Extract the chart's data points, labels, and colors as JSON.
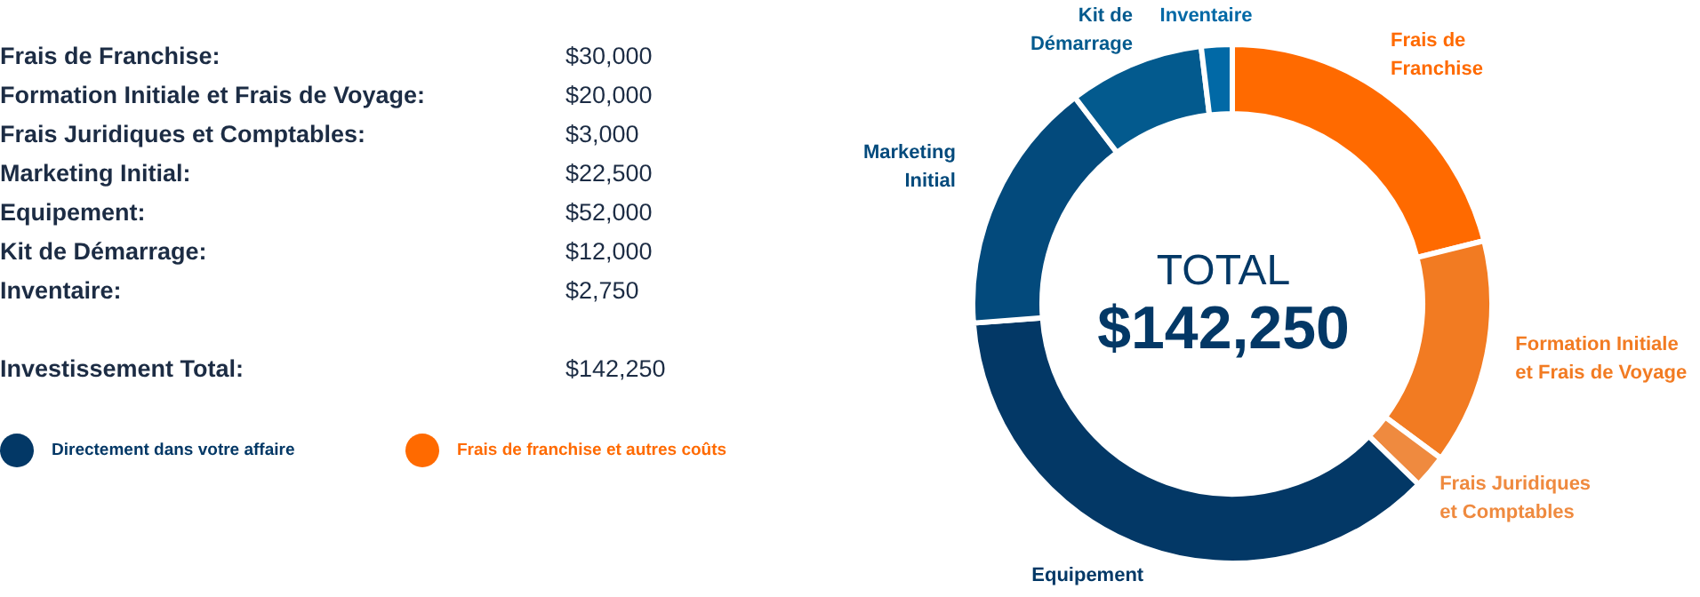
{
  "chart_data": {
    "type": "donut",
    "categories": [
      "Frais de Franchise",
      "Formation Initiale et Frais de Voyage",
      "Frais Juridiques et Comptables",
      "Equipement",
      "Marketing Initial",
      "Kit de Démarrage",
      "Inventaire"
    ],
    "values": [
      21.09,
      14.06,
      2.11,
      36.56,
      15.82,
      8.44,
      1.92
    ],
    "colors": [
      "#ff6a00",
      "#f27b22",
      "#ef8a3f",
      "#033866",
      "#034a7c",
      "#035a8e",
      "#0169a6"
    ],
    "annotations": [
      "Frais de Franchise:",
      "$30,000",
      "Formation Initiale et Frais de Voyage:",
      "$20,000",
      "Frais Juridiques et Comptables:",
      "$3,000",
      "Marketing Initial:",
      "$22,500",
      "Equipement:",
      "$52,000",
      "Kit de Démarrage:",
      "$12,000",
      "Inventaire:",
      "$2,750",
      "Investissement Total:",
      "$142,250",
      "TOTAL",
      "$142,250",
      "Directement dans votre affaire",
      "Frais de franchise et autres coûts"
    ]
  }
}
